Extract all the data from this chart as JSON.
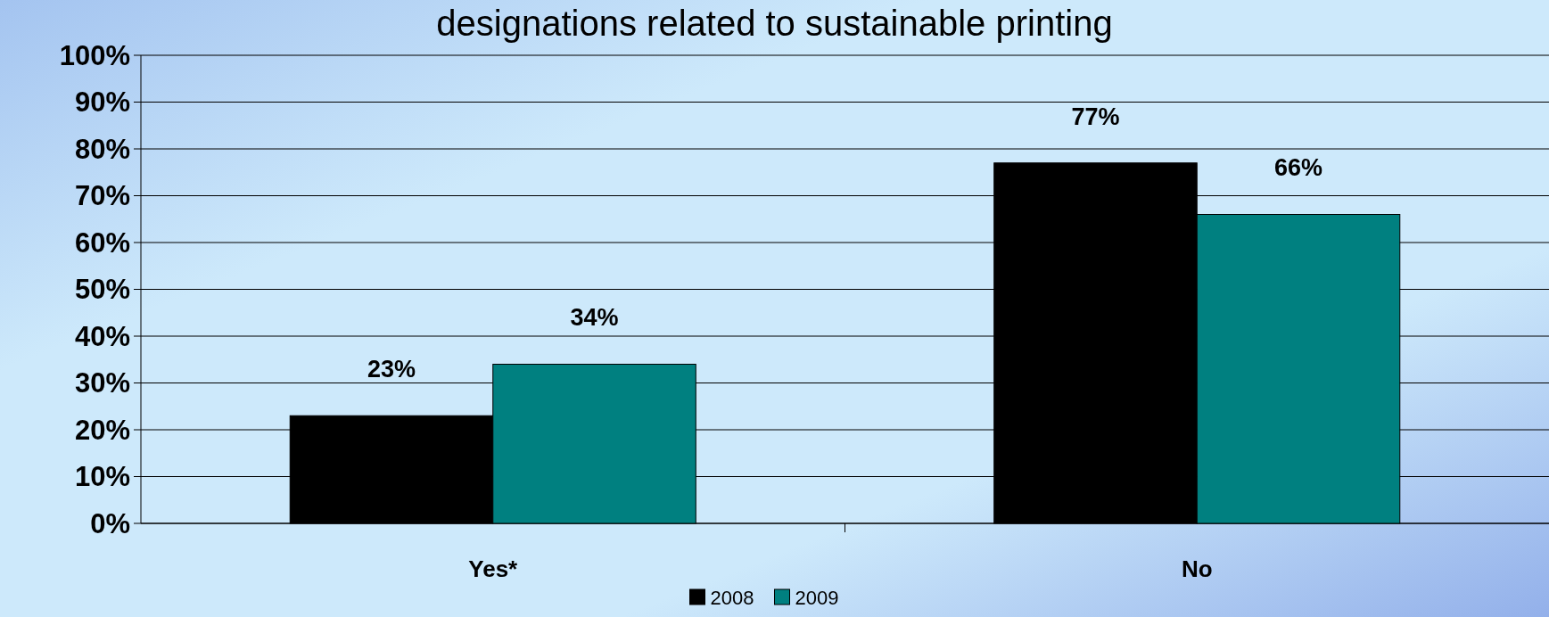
{
  "chart_data": {
    "type": "bar",
    "title": "designations related to sustainable printing",
    "categories": [
      "Yes*",
      "No"
    ],
    "series": [
      {
        "name": "2008",
        "color": "#000000",
        "values": [
          23,
          77
        ],
        "value_labels": [
          "23%",
          "77%"
        ]
      },
      {
        "name": "2009",
        "color": "#008080",
        "values": [
          34,
          66
        ],
        "value_labels": [
          "34%",
          "66%"
        ]
      }
    ],
    "ylim": [
      0,
      100
    ],
    "yticks": [
      {
        "value": 0,
        "label": "0%"
      },
      {
        "value": 10,
        "label": "10%"
      },
      {
        "value": 20,
        "label": "20%"
      },
      {
        "value": 30,
        "label": "30%"
      },
      {
        "value": 40,
        "label": "40%"
      },
      {
        "value": 50,
        "label": "50%"
      },
      {
        "value": 60,
        "label": "60%"
      },
      {
        "value": 70,
        "label": "70%"
      },
      {
        "value": 80,
        "label": "80%"
      },
      {
        "value": 90,
        "label": "90%"
      },
      {
        "value": 100,
        "label": "100%"
      }
    ],
    "grid": "y",
    "legend": "bottom"
  }
}
